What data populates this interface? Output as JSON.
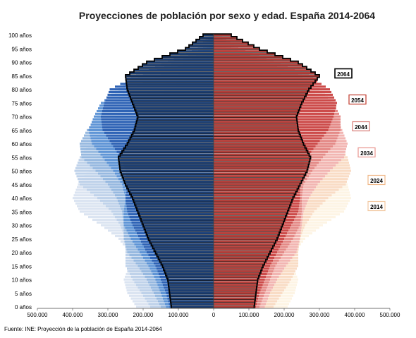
{
  "chart_data": {
    "type": "bar",
    "subtype": "population-pyramid",
    "title": "Proyecciones de población por sexo y edad. España 2014-2064",
    "source": "Fuente: INE: Proyección de la población de España 2014-2064",
    "age_ticks": [
      "0 años",
      "5 años",
      "10 años",
      "15 años",
      "20 años",
      "25 años",
      "30 años",
      "35 años",
      "40 años",
      "45 años",
      "50 años",
      "55 años",
      "60 años",
      "65 años",
      "70 años",
      "75 años",
      "80 años",
      "85 años",
      "90 años",
      "95 años",
      "100 años"
    ],
    "x_tick_labels": [
      "500.000",
      "400.000",
      "300.000",
      "200.000",
      "100.000",
      "0",
      "100.000",
      "200.000",
      "300.000",
      "400.000",
      "500.000"
    ],
    "xlim": [
      -500000,
      500000
    ],
    "age_range": [
      0,
      100
    ],
    "years_legend_order": [
      "2064",
      "2054",
      "2044",
      "2034",
      "2024",
      "2014"
    ],
    "anchor_ages": [
      0,
      5,
      10,
      15,
      20,
      25,
      30,
      35,
      40,
      45,
      50,
      55,
      60,
      65,
      70,
      75,
      80,
      85,
      90,
      95,
      100
    ],
    "series": [
      {
        "name": "2014",
        "male_color": "#dbe4f1",
        "female_color": "#fdf4e4",
        "label_border": "#f2c9a2",
        "male": [
          220000,
          245000,
          255000,
          240000,
          240000,
          270000,
          320000,
          380000,
          400000,
          385000,
          355000,
          330000,
          290000,
          250000,
          210000,
          180000,
          130000,
          75000,
          30000,
          8000,
          2000
        ],
        "female": [
          210000,
          230000,
          240000,
          225000,
          230000,
          260000,
          310000,
          370000,
          390000,
          380000,
          360000,
          340000,
          305000,
          270000,
          240000,
          215000,
          175000,
          115000,
          55000,
          18000,
          4000
        ]
      },
      {
        "name": "2024",
        "male_color": "#bfd2ea",
        "female_color": "#f9dcc5",
        "label_border": "#f0b98a",
        "male": [
          180000,
          205000,
          230000,
          250000,
          250000,
          250000,
          265000,
          290000,
          330000,
          380000,
          395000,
          380000,
          350000,
          320000,
          280000,
          230000,
          160000,
          100000,
          45000,
          12000,
          3000
        ],
        "female": [
          170000,
          195000,
          220000,
          240000,
          240000,
          245000,
          260000,
          285000,
          325000,
          375000,
          390000,
          380000,
          355000,
          330000,
          300000,
          265000,
          200000,
          140000,
          75000,
          25000,
          5000
        ]
      },
      {
        "name": "2034",
        "male_color": "#97b9e0",
        "female_color": "#f2b5b2",
        "label_border": "#e8958f",
        "male": [
          150000,
          170000,
          190000,
          215000,
          245000,
          255000,
          255000,
          260000,
          275000,
          300000,
          335000,
          375000,
          380000,
          360000,
          330000,
          290000,
          235000,
          150000,
          70000,
          20000,
          4000
        ],
        "female": [
          145000,
          160000,
          180000,
          205000,
          235000,
          245000,
          250000,
          255000,
          270000,
          295000,
          330000,
          370000,
          380000,
          365000,
          345000,
          315000,
          270000,
          190000,
          100000,
          35000,
          6000
        ]
      },
      {
        "name": "2044",
        "male_color": "#5f95d6",
        "female_color": "#e48a87",
        "label_border": "#d77a75",
        "male": [
          135000,
          150000,
          165000,
          185000,
          210000,
          235000,
          255000,
          255000,
          250000,
          260000,
          285000,
          315000,
          345000,
          355000,
          340000,
          320000,
          270000,
          200000,
          100000,
          30000,
          6000
        ],
        "female": [
          130000,
          145000,
          160000,
          175000,
          200000,
          225000,
          245000,
          250000,
          250000,
          255000,
          280000,
          310000,
          345000,
          360000,
          360000,
          340000,
          300000,
          240000,
          140000,
          50000,
          9000
        ]
      },
      {
        "name": "2054",
        "male_color": "#2f63b5",
        "female_color": "#cc4b4a",
        "label_border": "#c0392b",
        "male": [
          125000,
          135000,
          150000,
          165000,
          190000,
          210000,
          230000,
          245000,
          250000,
          245000,
          250000,
          265000,
          290000,
          315000,
          320000,
          310000,
          295000,
          220000,
          130000,
          45000,
          8000
        ],
        "female": [
          120000,
          130000,
          145000,
          160000,
          180000,
          200000,
          220000,
          240000,
          245000,
          245000,
          250000,
          265000,
          295000,
          325000,
          340000,
          350000,
          330000,
          270000,
          170000,
          70000,
          13000
        ]
      },
      {
        "name": "2064",
        "male_color": "#1d3f73",
        "female_color": "#b5403b",
        "label_border": "#000000",
        "outline": true,
        "male": [
          120000,
          125000,
          130000,
          145000,
          165000,
          185000,
          200000,
          215000,
          230000,
          250000,
          265000,
          270000,
          245000,
          225000,
          215000,
          230000,
          245000,
          250000,
          190000,
          80000,
          30000
        ],
        "female": [
          115000,
          120000,
          125000,
          140000,
          160000,
          180000,
          195000,
          210000,
          225000,
          245000,
          265000,
          275000,
          255000,
          240000,
          235000,
          250000,
          270000,
          300000,
          240000,
          130000,
          50000
        ]
      }
    ],
    "grid": false,
    "legend": "right-side labels"
  }
}
